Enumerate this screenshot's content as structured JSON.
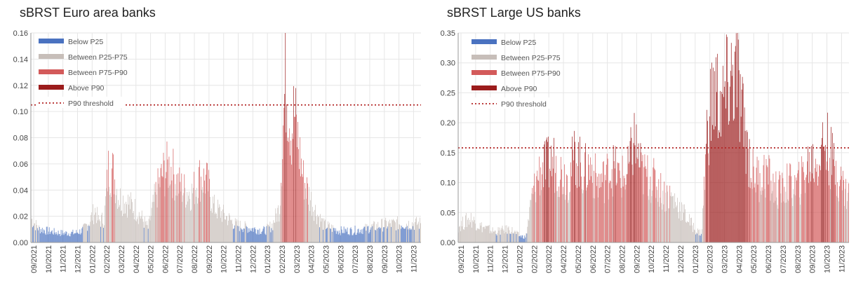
{
  "colors": {
    "below_p25": "#4a72c0",
    "between_p25_p75": "#c7beb9",
    "between_p75_p90": "#d35a5a",
    "above_p90": "#9b1c1c",
    "threshold": "#b22424",
    "grid": "#e6e6e6"
  },
  "chart_data": [
    {
      "type": "bar",
      "title": "sBRST Euro area banks",
      "ylim": [
        0,
        0.16
      ],
      "yticks": [
        "0.00",
        "0.02",
        "0.04",
        "0.06",
        "0.08",
        "0.10",
        "0.12",
        "0.14",
        "0.16"
      ],
      "xticks": [
        "09/2021",
        "10/2021",
        "11/2021",
        "12/2021",
        "01/2022",
        "02/2022",
        "03/2022",
        "04/2022",
        "05/2022",
        "06/2022",
        "07/2022",
        "08/2022",
        "09/2022",
        "10/2022",
        "11/2022",
        "12/2022",
        "01/2023",
        "02/2023",
        "03/2023",
        "04/2023",
        "05/2023",
        "06/2023",
        "07/2023",
        "08/2023",
        "09/2023",
        "10/2023",
        "11/2023"
      ],
      "thresholds": {
        "p25": 0.013,
        "p75": 0.045,
        "p90": 0.105
      },
      "p90_threshold": 0.105,
      "legend": [
        "Below P25",
        "Between P25-P75",
        "Between P75-P90",
        "Above P90",
        "P90 threshold"
      ],
      "series_profile": {
        "unit": "month index",
        "x": [
          0,
          0.5,
          1,
          1.5,
          2,
          2.5,
          3,
          3.5,
          4,
          4.4,
          4.6,
          5,
          5.3,
          5.6,
          6,
          6.5,
          7,
          7.5,
          8,
          8.5,
          9,
          9.5,
          10,
          10.5,
          11,
          11.5,
          12,
          12.5,
          13,
          14,
          15,
          16,
          16.5,
          17,
          17.2,
          17.4,
          17.6,
          17.8,
          18,
          18.3,
          18.6,
          19,
          19.5,
          20,
          21,
          22,
          23,
          24,
          25,
          26.5
        ],
        "y": [
          0.02,
          0.012,
          0.01,
          0.009,
          0.008,
          0.008,
          0.008,
          0.01,
          0.018,
          0.028,
          0.018,
          0.02,
          0.064,
          0.06,
          0.038,
          0.035,
          0.03,
          0.022,
          0.012,
          0.04,
          0.058,
          0.065,
          0.05,
          0.044,
          0.042,
          0.055,
          0.052,
          0.03,
          0.025,
          0.015,
          0.012,
          0.01,
          0.015,
          0.03,
          0.09,
          0.14,
          0.12,
          0.095,
          0.11,
          0.08,
          0.055,
          0.04,
          0.025,
          0.015,
          0.01,
          0.01,
          0.012,
          0.015,
          0.016,
          0.016
        ]
      }
    },
    {
      "type": "bar",
      "title": "sBRST Large US banks",
      "ylim": [
        0,
        0.35
      ],
      "yticks": [
        "0.00",
        "0.05",
        "0.10",
        "0.15",
        "0.20",
        "0.25",
        "0.30",
        "0.35"
      ],
      "xticks": [
        "09/2021",
        "10/2021",
        "11/2021",
        "12/2021",
        "01/2022",
        "02/2022",
        "03/2022",
        "04/2022",
        "05/2022",
        "06/2022",
        "07/2022",
        "08/2022",
        "09/2022",
        "10/2022",
        "11/2022",
        "12/2022",
        "01/2023",
        "02/2023",
        "03/2023",
        "04/2023",
        "05/2023",
        "06/2023",
        "07/2023",
        "08/2023",
        "09/2023",
        "10/2023",
        "11/2023"
      ],
      "thresholds": {
        "p25": 0.015,
        "p75": 0.09,
        "p90": 0.158
      },
      "p90_threshold": 0.158,
      "legend": [
        "Below P25",
        "Between P25-P75",
        "Between P75-P90",
        "Above P90",
        "P90 threshold"
      ],
      "series_profile": {
        "unit": "month index",
        "x": [
          0,
          0.8,
          1.5,
          2.5,
          3.5,
          4.2,
          4.6,
          5,
          5.5,
          6,
          6.5,
          7,
          7.5,
          8,
          8.5,
          9,
          9.5,
          10,
          10.5,
          11,
          11.5,
          12,
          12.5,
          13,
          13.5,
          14,
          14.5,
          15,
          15.5,
          16,
          16.3,
          16.6,
          17,
          17.5,
          18,
          18.5,
          19,
          19.3,
          19.6,
          20,
          20.5,
          21,
          21.5,
          22,
          22.5,
          23,
          23.5,
          24,
          24.5,
          25,
          25.5,
          26,
          26.5
        ],
        "y": [
          0.03,
          0.045,
          0.03,
          0.02,
          0.025,
          0.012,
          0.01,
          0.08,
          0.13,
          0.14,
          0.15,
          0.13,
          0.12,
          0.165,
          0.13,
          0.14,
          0.11,
          0.12,
          0.14,
          0.12,
          0.12,
          0.19,
          0.13,
          0.12,
          0.11,
          0.09,
          0.085,
          0.07,
          0.05,
          0.03,
          0.02,
          0.018,
          0.22,
          0.28,
          0.25,
          0.3,
          0.31,
          0.24,
          0.2,
          0.13,
          0.12,
          0.13,
          0.1,
          0.095,
          0.11,
          0.1,
          0.12,
          0.15,
          0.15,
          0.19,
          0.15,
          0.12,
          0.09
        ]
      }
    }
  ]
}
